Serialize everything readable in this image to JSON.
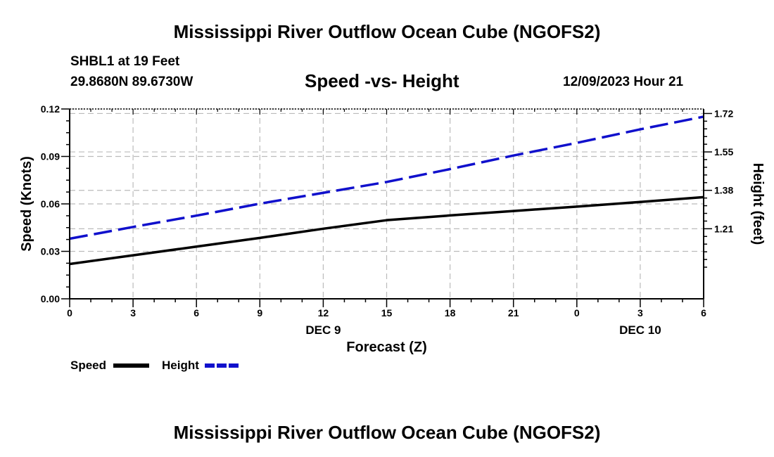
{
  "header": {
    "title": "Mississippi River Outflow Ocean Cube (NGOFS2)",
    "station": "SHBL1 at 19 Feet",
    "coords": "29.8680N  89.6730W",
    "subtitle": "Speed -vs- Height",
    "datetime": "12/09/2023 Hour 21"
  },
  "footer": {
    "title": "Mississippi River Outflow Ocean Cube (NGOFS2)"
  },
  "chart_data": {
    "type": "line",
    "title": "Speed -vs- Height",
    "xlabel": "Forecast (Z)",
    "ylabel": "Speed (Knots)",
    "y2label": "Height (feet)",
    "x": [
      0,
      3,
      6,
      9,
      12,
      15,
      18,
      21,
      24,
      27,
      30
    ],
    "x_tick_labels": [
      "0",
      "3",
      "6",
      "9",
      "12",
      "15",
      "18",
      "21",
      "0",
      "3",
      "6"
    ],
    "date_labels": [
      {
        "x": 12,
        "label": "DEC 9"
      },
      {
        "x": 27,
        "label": "DEC 10"
      }
    ],
    "xlim": [
      0,
      30
    ],
    "ylim": [
      0,
      0.12
    ],
    "y_ticks": [
      0.0,
      0.03,
      0.06,
      0.09,
      0.12
    ],
    "y_tick_labels": [
      "0.00",
      "0.03",
      "0.06",
      "0.09",
      "0.12"
    ],
    "y2lim": [
      0.9,
      1.74
    ],
    "y2_ticks": [
      1.21,
      1.38,
      1.55,
      1.72
    ],
    "y2_tick_labels": [
      "1.21",
      "1.38",
      "1.55",
      "1.72"
    ],
    "grid": true,
    "series": [
      {
        "name": "Speed",
        "axis": "left",
        "color": "#000000",
        "style": "solid",
        "values": [
          0.022,
          0.0275,
          0.033,
          0.0385,
          0.0443,
          0.0497,
          0.0527,
          0.0555,
          0.0583,
          0.0612,
          0.0643
        ]
      },
      {
        "name": "Height",
        "axis": "right",
        "color": "#1010cc",
        "style": "dashed",
        "values": [
          1.166,
          1.218,
          1.268,
          1.321,
          1.369,
          1.417,
          1.474,
          1.534,
          1.59,
          1.65,
          1.706
        ]
      }
    ],
    "legend": [
      {
        "label": "Speed",
        "color": "#000000",
        "style": "solid"
      },
      {
        "label": "Height",
        "color": "#1010cc",
        "style": "dashed"
      }
    ],
    "legend_position": "bottom-left"
  }
}
